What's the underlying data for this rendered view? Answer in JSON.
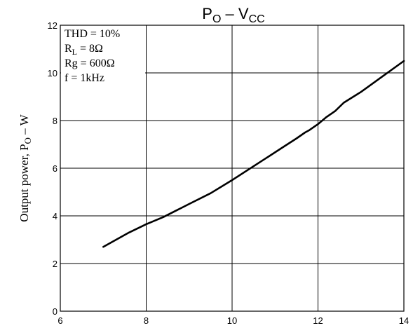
{
  "chart_data": {
    "type": "line",
    "title": {
      "main_a": "P",
      "main_a_sub": "O",
      "sep": " – ",
      "main_b": "V",
      "main_b_sub": "CC"
    },
    "xlabel": "",
    "ylabel": {
      "text": "Output power, P",
      "sub": "O",
      "unit": " – W"
    },
    "xlim": [
      6,
      14
    ],
    "ylim": [
      0,
      12
    ],
    "xticks": [
      6,
      8,
      10,
      12,
      14
    ],
    "yticks": [
      0,
      2,
      4,
      6,
      8,
      10,
      12
    ],
    "grid": true,
    "annotations": [
      {
        "text": "THD = 10%",
        "sub": "",
        "tail": ""
      },
      {
        "text": "R",
        "sub": "L",
        "tail": " = 8Ω"
      },
      {
        "text": "Rg = 600Ω",
        "sub": "",
        "tail": ""
      },
      {
        "text": "f = 1kHz",
        "sub": "",
        "tail": ""
      }
    ],
    "series": [
      {
        "x": [
          7.0,
          7.6,
          8.0,
          8.4,
          9.0,
          9.5,
          10.0,
          10.6,
          11.2,
          11.5,
          11.7,
          11.8,
          12.0,
          12.2,
          12.4,
          12.6,
          13.0,
          13.5,
          14.0
        ],
        "y": [
          2.7,
          3.3,
          3.65,
          3.95,
          4.5,
          4.95,
          5.5,
          6.2,
          6.9,
          7.25,
          7.5,
          7.6,
          7.85,
          8.15,
          8.4,
          8.75,
          9.2,
          9.85,
          10.5
        ]
      }
    ]
  }
}
